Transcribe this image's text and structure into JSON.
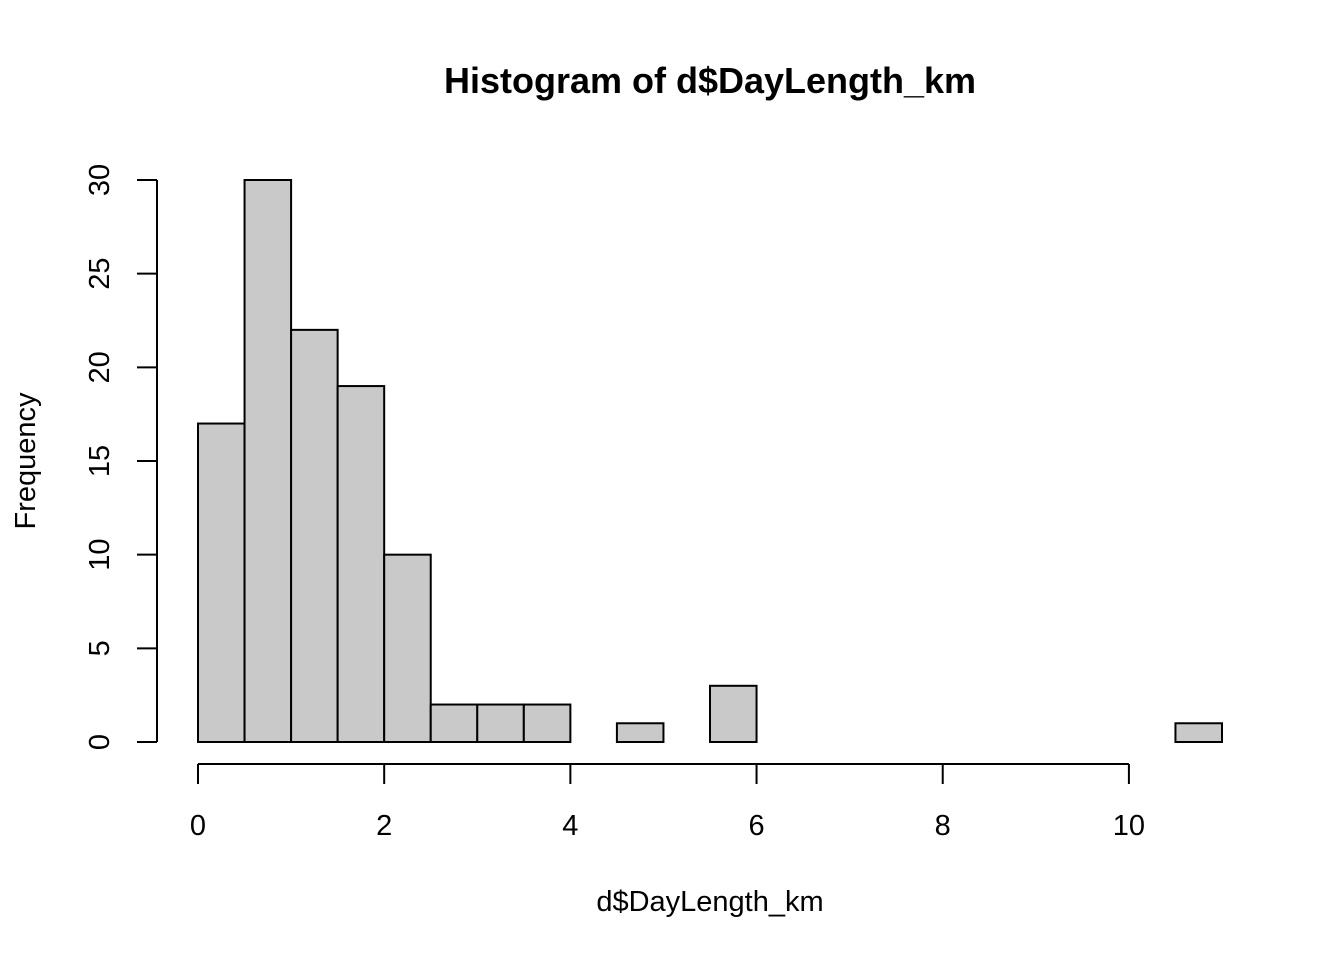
{
  "chart_data": {
    "type": "bar",
    "title": "Histogram of d$DayLength_km",
    "xlabel": "d$DayLength_km",
    "ylabel": "Frequency",
    "bin_edges": [
      0,
      0.5,
      1,
      1.5,
      2,
      2.5,
      3,
      3.5,
      4,
      4.5,
      5,
      5.5,
      6,
      6.5,
      7,
      7.5,
      8,
      8.5,
      9,
      9.5,
      10,
      10.5,
      11
    ],
    "values": [
      17,
      30,
      22,
      19,
      10,
      2,
      2,
      2,
      0,
      1,
      0,
      3,
      0,
      0,
      0,
      0,
      0,
      0,
      0,
      0,
      0,
      1
    ],
    "xlim": [
      0,
      11
    ],
    "ylim": [
      0,
      30
    ],
    "x_ticks": [
      0,
      2,
      4,
      6,
      8,
      10
    ],
    "x_tick_labels": [
      "0",
      "2",
      "4",
      "6",
      "8",
      "10"
    ],
    "y_ticks": [
      0,
      5,
      10,
      15,
      20,
      25,
      30
    ],
    "y_tick_labels": [
      "0",
      "5",
      "10",
      "15",
      "20",
      "25",
      "30"
    ],
    "grid": false,
    "legend": "none",
    "bar_color": "#c9c9c9",
    "edge_color": "#000000"
  }
}
